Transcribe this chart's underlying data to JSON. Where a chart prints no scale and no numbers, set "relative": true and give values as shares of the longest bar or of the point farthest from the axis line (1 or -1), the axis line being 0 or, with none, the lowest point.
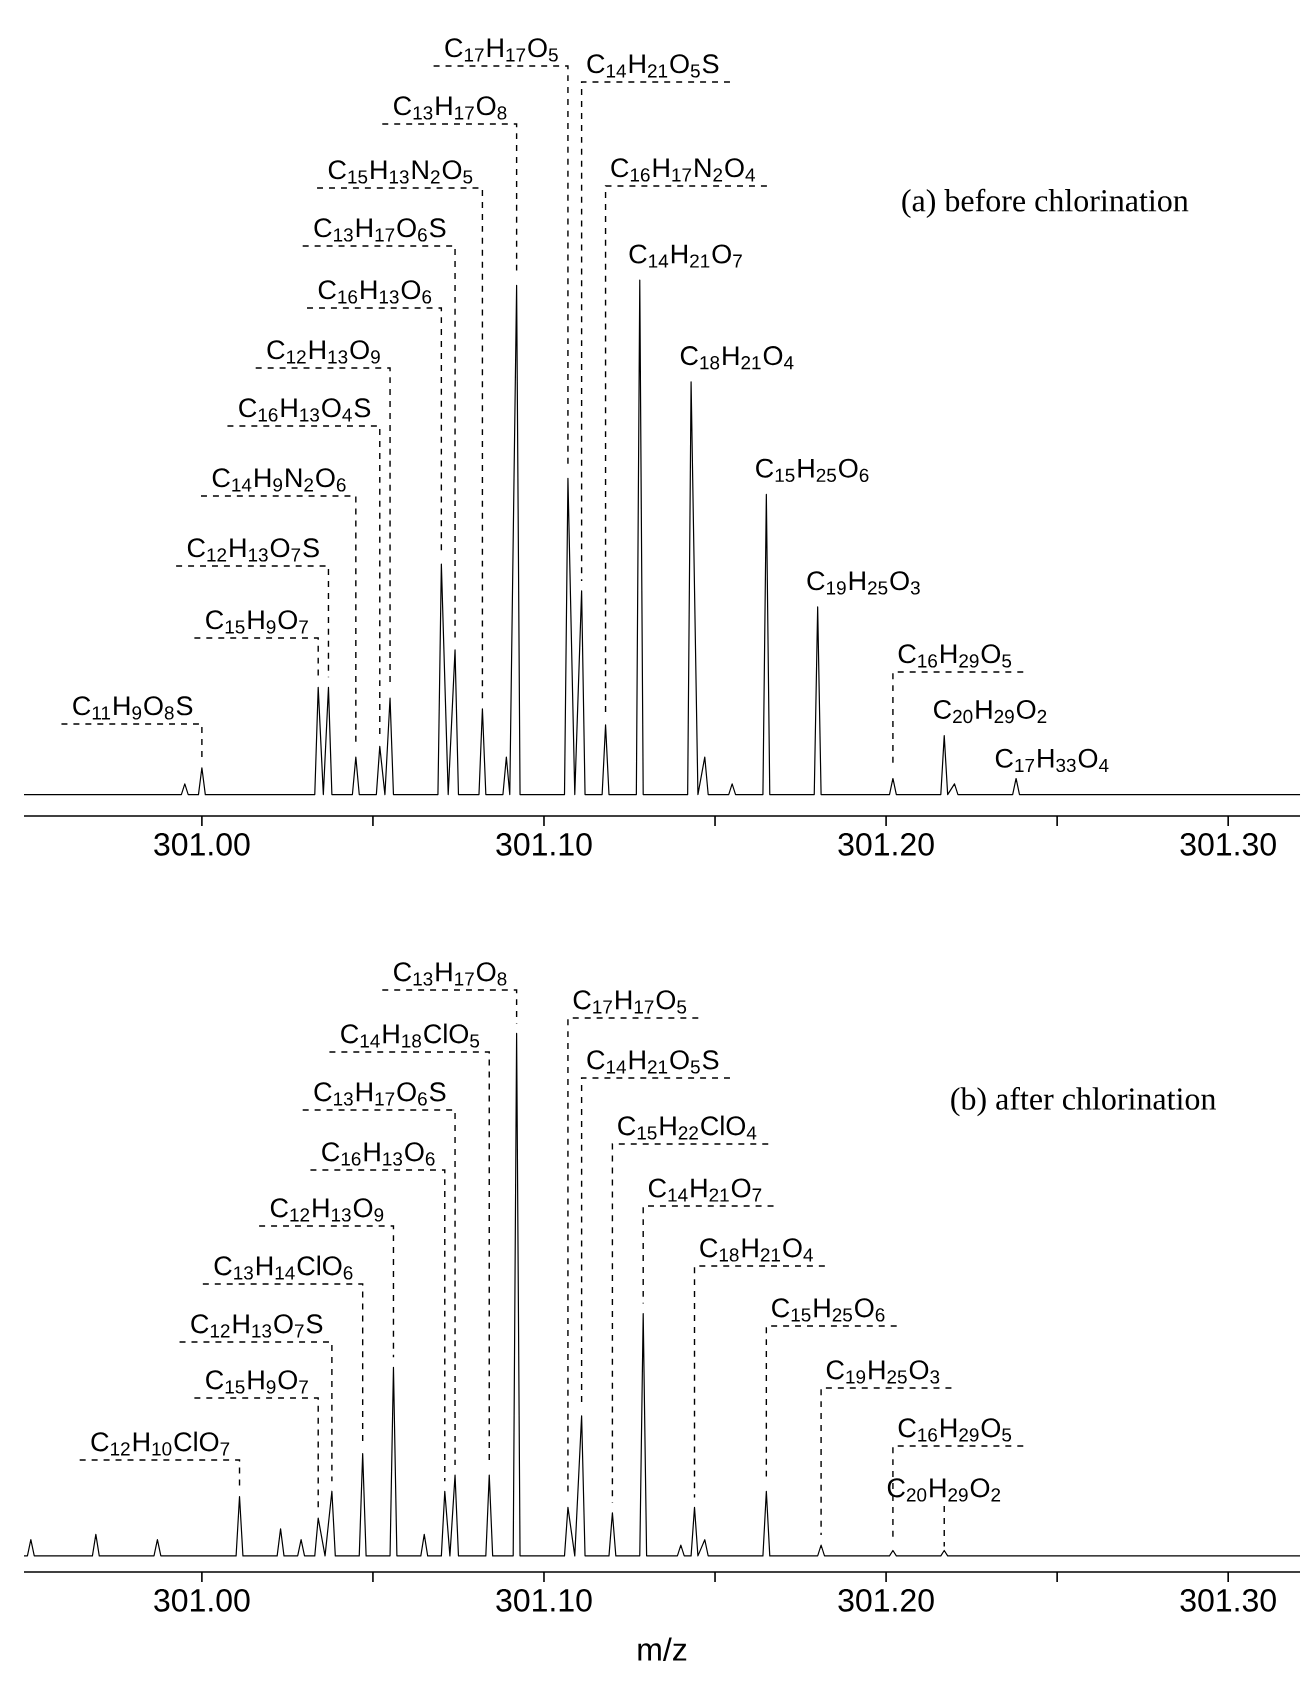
{
  "chart_data": [
    {
      "type": "line",
      "title": "(a) before chlorination",
      "relative": true,
      "color": "#000000",
      "xlim": [
        300.948,
        301.321
      ],
      "xticks": [
        {
          "value": 301.0,
          "label": "301.00"
        },
        {
          "value": 301.05,
          "label": null
        },
        {
          "value": 301.1,
          "label": "301.10"
        },
        {
          "value": 301.15,
          "label": null
        },
        {
          "value": 301.2,
          "label": "301.20"
        },
        {
          "value": 301.25,
          "label": null
        },
        {
          "value": 301.3,
          "label": "301.30"
        }
      ],
      "x": [
        300.948,
        300.994,
        300.995,
        300.996,
        300.999,
        301.0,
        301.001,
        301.033,
        301.034,
        301.0355,
        301.037,
        301.038,
        301.044,
        301.045,
        301.046,
        301.051,
        301.052,
        301.0535,
        301.055,
        301.056,
        301.069,
        301.07,
        301.072,
        301.074,
        301.075,
        301.081,
        301.082,
        301.083,
        301.088,
        301.089,
        301.09,
        301.092,
        301.093,
        301.106,
        301.107,
        301.109,
        301.111,
        301.112,
        301.117,
        301.118,
        301.119,
        301.127,
        301.128,
        301.129,
        301.142,
        301.143,
        301.145,
        301.147,
        301.148,
        301.154,
        301.155,
        301.156,
        301.164,
        301.165,
        301.166,
        301.179,
        301.18,
        301.181,
        301.201,
        301.202,
        301.203,
        301.216,
        301.217,
        301.218,
        301.22,
        301.221,
        301.237,
        301.238,
        301.239,
        301.321
      ],
      "values": [
        0.04,
        0.04,
        0.06,
        0.04,
        0.04,
        0.09,
        0.04,
        0.04,
        0.24,
        0.04,
        0.24,
        0.04,
        0.04,
        0.11,
        0.04,
        0.04,
        0.13,
        0.04,
        0.22,
        0.04,
        0.04,
        0.47,
        0.04,
        0.31,
        0.04,
        0.04,
        0.2,
        0.04,
        0.04,
        0.11,
        0.04,
        0.99,
        0.04,
        0.04,
        0.63,
        0.04,
        0.42,
        0.04,
        0.04,
        0.17,
        0.04,
        0.04,
        1.0,
        0.04,
        0.04,
        0.81,
        0.04,
        0.11,
        0.04,
        0.04,
        0.06,
        0.04,
        0.04,
        0.6,
        0.04,
        0.04,
        0.39,
        0.04,
        0.04,
        0.07,
        0.04,
        0.04,
        0.15,
        0.04,
        0.06,
        0.04,
        0.04,
        0.07,
        0.04,
        0.04
      ],
      "annotations": [
        {
          "text": "C$_{11}$H$_{9}$O$_{8}$S",
          "x": 301.0,
          "y": 0.09
        },
        {
          "text": "C$_{15}$H$_{9}$O$_{7}$",
          "x": 301.034,
          "y": 0.24
        },
        {
          "text": "C$_{12}$H$_{13}$O$_{7}$S",
          "x": 301.037,
          "y": 0.24
        },
        {
          "text": "C$_{14}$H$_{9}$N$_{2}$O$_{6}$",
          "x": 301.045,
          "y": 0.11
        },
        {
          "text": "C$_{16}$H$_{13}$O$_{4}$S",
          "x": 301.052,
          "y": 0.13
        },
        {
          "text": "C$_{12}$H$_{13}$O$_{9}$",
          "x": 301.055,
          "y": 0.22
        },
        {
          "text": "C$_{16}$H$_{13}$O$_{6}$",
          "x": 301.07,
          "y": 0.47
        },
        {
          "text": "C$_{13}$H$_{17}$O$_{6}$S",
          "x": 301.074,
          "y": 0.31
        },
        {
          "text": "C$_{15}$H$_{13}$N$_{2}$O$_{5}$",
          "x": 301.082,
          "y": 0.2
        },
        {
          "text": "C$_{13}$H$_{17}$O$_{8}$",
          "x": 301.092,
          "y": 0.99
        },
        {
          "text": "C$_{17}$H$_{17}$O$_{5}$",
          "x": 301.107,
          "y": 0.63
        },
        {
          "text": "C$_{14}$H$_{21}$O$_{5}$S",
          "x": 301.111,
          "y": 0.42
        },
        {
          "text": "C$_{16}$H$_{17}$N$_{2}$O$_{4}$",
          "x": 301.118,
          "y": 0.17
        },
        {
          "text": "C$_{14}$H$_{21}$O$_{7}$",
          "x": 301.128,
          "y": 1.0
        },
        {
          "text": "C$_{18}$H$_{21}$O$_{4}$",
          "x": 301.143,
          "y": 0.81
        },
        {
          "text": "C$_{15}$H$_{25}$O$_{6}$",
          "x": 301.165,
          "y": 0.6
        },
        {
          "text": "C$_{19}$H$_{25}$O$_{3}$",
          "x": 301.18,
          "y": 0.39
        },
        {
          "text": "C$_{16}$H$_{29}$O$_{5}$",
          "x": 301.202,
          "y": 0.07
        },
        {
          "text": "C$_{20}$H$_{29}$O$_{2}$",
          "x": 301.217,
          "y": 0.15
        },
        {
          "text": "C$_{17}$H$_{33}$O$_{4}$",
          "x": 301.238,
          "y": 0.07
        }
      ]
    },
    {
      "type": "line",
      "title": "(b) after chlorination",
      "xlabel": "m/z",
      "relative": true,
      "color": "#000000",
      "xlim": [
        300.948,
        301.321
      ],
      "xticks": [
        {
          "value": 301.0,
          "label": "301.00"
        },
        {
          "value": 301.05,
          "label": null
        },
        {
          "value": 301.1,
          "label": "301.10"
        },
        {
          "value": 301.15,
          "label": null
        },
        {
          "value": 301.2,
          "label": "301.20"
        },
        {
          "value": 301.25,
          "label": null
        },
        {
          "value": 301.3,
          "label": "301.30"
        }
      ],
      "x": [
        300.948,
        300.949,
        300.95,
        300.951,
        300.968,
        300.969,
        300.97,
        300.986,
        300.987,
        300.988,
        301.01,
        301.011,
        301.012,
        301.022,
        301.023,
        301.024,
        301.028,
        301.029,
        301.03,
        301.033,
        301.034,
        301.036,
        301.038,
        301.039,
        301.046,
        301.047,
        301.048,
        301.055,
        301.056,
        301.057,
        301.064,
        301.065,
        301.066,
        301.07,
        301.071,
        301.0725,
        301.074,
        301.075,
        301.083,
        301.084,
        301.085,
        301.091,
        301.092,
        301.093,
        301.106,
        301.107,
        301.109,
        301.111,
        301.112,
        301.119,
        301.12,
        301.121,
        301.128,
        301.129,
        301.13,
        301.139,
        301.14,
        301.141,
        301.143,
        301.144,
        301.145,
        301.147,
        301.148,
        301.164,
        301.165,
        301.166,
        301.18,
        301.181,
        301.182,
        301.201,
        301.202,
        301.203,
        301.216,
        301.217,
        301.218,
        301.321
      ],
      "values": [
        0.03,
        0.03,
        0.06,
        0.03,
        0.03,
        0.07,
        0.03,
        0.03,
        0.06,
        0.03,
        0.03,
        0.14,
        0.03,
        0.03,
        0.08,
        0.03,
        0.03,
        0.06,
        0.03,
        0.03,
        0.1,
        0.03,
        0.15,
        0.03,
        0.03,
        0.22,
        0.03,
        0.03,
        0.38,
        0.03,
        0.03,
        0.07,
        0.03,
        0.03,
        0.15,
        0.03,
        0.18,
        0.03,
        0.03,
        0.18,
        0.03,
        0.03,
        1.0,
        0.03,
        0.03,
        0.12,
        0.03,
        0.29,
        0.03,
        0.03,
        0.11,
        0.03,
        0.03,
        0.48,
        0.03,
        0.03,
        0.05,
        0.03,
        0.03,
        0.12,
        0.03,
        0.06,
        0.03,
        0.03,
        0.15,
        0.03,
        0.03,
        0.05,
        0.03,
        0.03,
        0.04,
        0.03,
        0.03,
        0.04,
        0.03,
        0.03
      ],
      "annotations": [
        {
          "text": "C$_{12}$H$_{10}$ClO$_{7}$",
          "x": 301.011,
          "y": 0.14
        },
        {
          "text": "C$_{15}$H$_{9}$O$_{7}$",
          "x": 301.034,
          "y": 0.1
        },
        {
          "text": "C$_{12}$H$_{13}$O$_{7}$S",
          "x": 301.038,
          "y": 0.15
        },
        {
          "text": "C$_{13}$H$_{14}$ClO$_{6}$",
          "x": 301.047,
          "y": 0.22
        },
        {
          "text": "C$_{12}$H$_{13}$O$_{9}$",
          "x": 301.056,
          "y": 0.38
        },
        {
          "text": "C$_{16}$H$_{13}$O$_{6}$",
          "x": 301.071,
          "y": 0.15
        },
        {
          "text": "C$_{13}$H$_{17}$O$_{6}$S",
          "x": 301.074,
          "y": 0.18
        },
        {
          "text": "C$_{14}$H$_{18}$ClO$_{5}$",
          "x": 301.084,
          "y": 0.18
        },
        {
          "text": "C$_{13}$H$_{17}$O$_{8}$",
          "x": 301.092,
          "y": 1.0
        },
        {
          "text": "C$_{17}$H$_{17}$O$_{5}$",
          "x": 301.107,
          "y": 0.12
        },
        {
          "text": "C$_{14}$H$_{21}$O$_{5}$S",
          "x": 301.111,
          "y": 0.29
        },
        {
          "text": "C$_{15}$H$_{22}$ClO$_{4}$",
          "x": 301.12,
          "y": 0.11
        },
        {
          "text": "C$_{14}$H$_{21}$O$_{7}$",
          "x": 301.129,
          "y": 0.48
        },
        {
          "text": "C$_{18}$H$_{21}$O$_{4}$",
          "x": 301.144,
          "y": 0.12
        },
        {
          "text": "C$_{15}$H$_{25}$O$_{6}$",
          "x": 301.165,
          "y": 0.15
        },
        {
          "text": "C$_{19}$H$_{25}$O$_{3}$",
          "x": 301.181,
          "y": 0.05
        },
        {
          "text": "C$_{16}$H$_{29}$O$_{5}$",
          "x": 301.202,
          "y": 0.04
        },
        {
          "text": "C$_{20}$H$_{29}$O$_{2}$",
          "x": 301.217,
          "y": 0.04
        }
      ]
    }
  ]
}
